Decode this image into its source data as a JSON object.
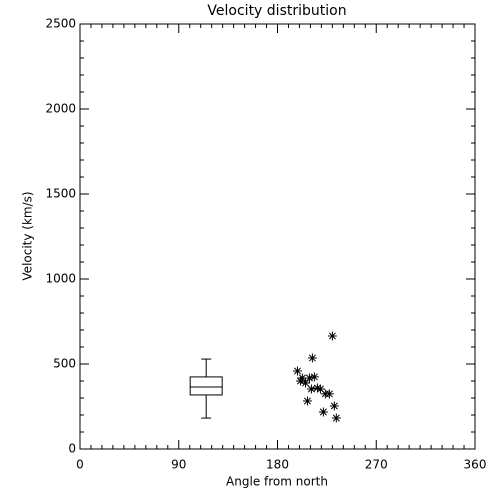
{
  "chart_data": {
    "type": "scatter",
    "title": "Velocity distribution",
    "x_label": "Angle from north",
    "y_label": "Velocity (km/s)",
    "x": [
      198.2,
      200.9,
      202.7,
      205.5,
      209.1,
      211.8,
      213.6,
      207.3,
      216.4,
      219.1,
      221.8,
      223.6,
      227.3,
      230,
      231.8,
      233.6,
      210.9
    ],
    "values": [
      459,
      400,
      418,
      388,
      418,
      535,
      424,
      282,
      359,
      353,
      218,
      324,
      324,
      665,
      253,
      182,
      353
    ],
    "box": {
      "x": 115,
      "whislo": 182,
      "q1": 318,
      "med": 365,
      "q3": 424,
      "whishi": 529
    },
    "color": "#000000",
    "xlim": [
      0,
      360
    ],
    "xticks": [
      0,
      90,
      180,
      270,
      360
    ],
    "ylim": [
      0,
      2500
    ],
    "yticks": [
      0,
      500,
      1000,
      1500,
      2000,
      2500
    ]
  }
}
